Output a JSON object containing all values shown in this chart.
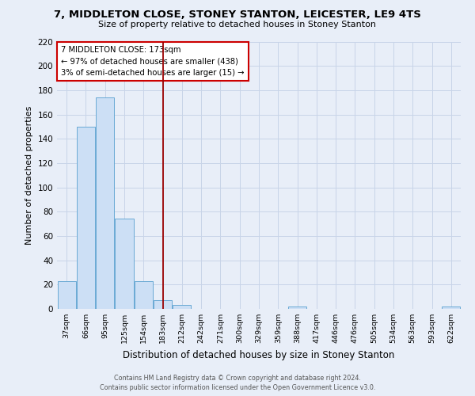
{
  "title": "7, MIDDLETON CLOSE, STONEY STANTON, LEICESTER, LE9 4TS",
  "subtitle": "Size of property relative to detached houses in Stoney Stanton",
  "xlabel": "Distribution of detached houses by size in Stoney Stanton",
  "ylabel": "Number of detached properties",
  "bin_labels": [
    "37sqm",
    "66sqm",
    "95sqm",
    "125sqm",
    "154sqm",
    "183sqm",
    "212sqm",
    "242sqm",
    "271sqm",
    "300sqm",
    "329sqm",
    "359sqm",
    "388sqm",
    "417sqm",
    "446sqm",
    "476sqm",
    "505sqm",
    "534sqm",
    "563sqm",
    "593sqm",
    "622sqm"
  ],
  "bin_edges": [
    37,
    66,
    95,
    125,
    154,
    183,
    212,
    242,
    271,
    300,
    329,
    359,
    388,
    417,
    446,
    476,
    505,
    534,
    563,
    593,
    622
  ],
  "counts": [
    23,
    150,
    174,
    74,
    23,
    7,
    3,
    0,
    0,
    0,
    0,
    0,
    2,
    0,
    0,
    0,
    0,
    0,
    0,
    0,
    2
  ],
  "bar_color": "#ccdff5",
  "bar_edge_color": "#6aaad4",
  "grid_color": "#c8d4e8",
  "background_color": "#e8eef8",
  "vline_x": 183,
  "vline_color": "#9b0000",
  "annotation_title": "7 MIDDLETON CLOSE: 173sqm",
  "annotation_line1": "← 97% of detached houses are smaller (438)",
  "annotation_line2": "3% of semi-detached houses are larger (15) →",
  "annotation_box_facecolor": "#ffffff",
  "annotation_box_edgecolor": "#cc0000",
  "footer1": "Contains HM Land Registry data © Crown copyright and database right 2024.",
  "footer2": "Contains public sector information licensed under the Open Government Licence v3.0.",
  "ylim": [
    0,
    220
  ],
  "yticks": [
    0,
    20,
    40,
    60,
    80,
    100,
    120,
    140,
    160,
    180,
    200,
    220
  ],
  "title_fontsize": 9.5,
  "subtitle_fontsize": 8,
  "xlabel_fontsize": 8.5,
  "ylabel_fontsize": 8,
  "xtick_fontsize": 6.8,
  "ytick_fontsize": 7.5,
  "footer_fontsize": 5.8
}
